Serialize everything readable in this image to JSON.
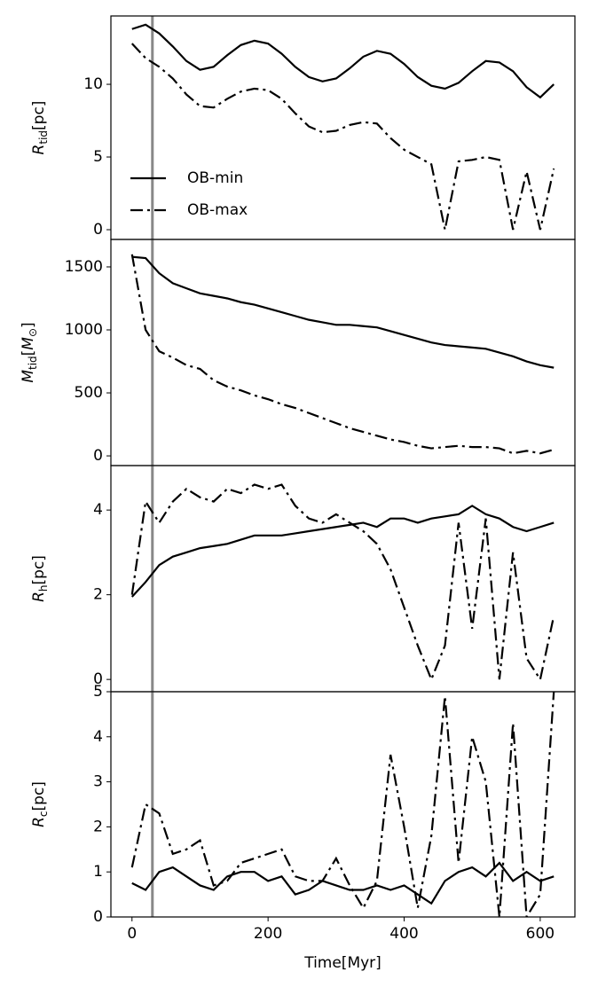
{
  "chart_data": [
    {
      "type": "line",
      "ylabel": [
        {
          "text": "R",
          "italic": true
        },
        {
          "text": "tid",
          "sub": true
        },
        {
          "text": "[pc]"
        }
      ],
      "x": [
        0,
        20,
        40,
        60,
        80,
        100,
        120,
        140,
        160,
        180,
        200,
        220,
        240,
        260,
        280,
        300,
        320,
        340,
        360,
        380,
        400,
        420,
        440,
        460,
        480,
        500,
        520,
        540,
        560,
        580,
        600,
        620
      ],
      "xlim": [
        -31,
        651
      ],
      "ylim": [
        -0.67,
        14.7
      ],
      "yticks": [
        0,
        5,
        10
      ],
      "vline": 30,
      "vline_color": "#888888",
      "legend": "lower left",
      "series": [
        {
          "name": "OB-min",
          "color": "#000000",
          "style": "solid",
          "values": [
            13.8,
            14.1,
            13.5,
            12.6,
            11.6,
            11.0,
            11.2,
            12.0,
            12.7,
            13.0,
            12.8,
            12.1,
            11.2,
            10.5,
            10.2,
            10.4,
            11.1,
            11.9,
            12.3,
            12.1,
            11.4,
            10.5,
            9.9,
            9.7,
            10.1,
            10.9,
            11.6,
            11.5,
            10.9,
            9.8,
            9.1,
            10.0
          ]
        },
        {
          "name": "OB-max",
          "color": "#000000",
          "style": "dashdot",
          "values": [
            12.8,
            11.8,
            11.2,
            10.4,
            9.3,
            8.5,
            8.4,
            9.0,
            9.5,
            9.7,
            9.6,
            9.0,
            8.0,
            7.1,
            6.7,
            6.8,
            7.2,
            7.4,
            7.3,
            6.3,
            5.5,
            5.0,
            4.5,
            0,
            4.7,
            4.8,
            5.0,
            4.8,
            0,
            4.0,
            0,
            4.2
          ]
        }
      ]
    },
    {
      "type": "line",
      "ylabel": [
        {
          "text": "M",
          "italic": true
        },
        {
          "text": "tid",
          "sub": true
        },
        {
          "text": "["
        },
        {
          "text": "M",
          "italic": true
        },
        {
          "text": "⊙",
          "sub": true
        },
        {
          "text": "]"
        }
      ],
      "x": [
        0,
        20,
        40,
        60,
        80,
        100,
        120,
        140,
        160,
        180,
        200,
        220,
        240,
        260,
        280,
        300,
        320,
        340,
        360,
        380,
        400,
        420,
        440,
        460,
        480,
        500,
        520,
        540,
        560,
        580,
        600,
        620
      ],
      "xlim": [
        -31,
        651
      ],
      "ylim": [
        -77,
        1718
      ],
      "yticks": [
        0,
        500,
        1000,
        1500
      ],
      "vline": 30,
      "vline_color": "#888888",
      "series": [
        {
          "color": "#000000",
          "style": "solid",
          "values": [
            1580,
            1570,
            1450,
            1370,
            1330,
            1290,
            1270,
            1250,
            1220,
            1200,
            1170,
            1140,
            1110,
            1080,
            1060,
            1040,
            1040,
            1030,
            1020,
            990,
            960,
            930,
            900,
            880,
            870,
            860,
            850,
            820,
            790,
            750,
            720,
            700
          ]
        },
        {
          "color": "#000000",
          "style": "dashdot",
          "values": [
            1600,
            1000,
            830,
            780,
            720,
            690,
            600,
            550,
            520,
            480,
            450,
            410,
            380,
            340,
            300,
            260,
            220,
            190,
            160,
            130,
            110,
            80,
            60,
            70,
            80,
            70,
            70,
            60,
            20,
            40,
            20,
            50
          ]
        }
      ]
    },
    {
      "type": "line",
      "ylabel": [
        {
          "text": "R",
          "italic": true
        },
        {
          "text": "h",
          "sub": true
        },
        {
          "text": "[pc]"
        }
      ],
      "x": [
        0,
        20,
        40,
        60,
        80,
        100,
        120,
        140,
        160,
        180,
        200,
        220,
        240,
        260,
        280,
        300,
        320,
        340,
        360,
        380,
        400,
        420,
        440,
        460,
        480,
        500,
        520,
        540,
        560,
        580,
        600,
        620
      ],
      "xlim": [
        -31,
        651
      ],
      "ylim": [
        -0.29,
        5.05
      ],
      "yticks": [
        0,
        2,
        4
      ],
      "vline": 30,
      "vline_color": "#888888",
      "series": [
        {
          "color": "#000000",
          "style": "solid",
          "values": [
            1.95,
            2.3,
            2.7,
            2.9,
            3.0,
            3.1,
            3.15,
            3.2,
            3.3,
            3.4,
            3.4,
            3.4,
            3.45,
            3.5,
            3.55,
            3.6,
            3.65,
            3.7,
            3.6,
            3.8,
            3.8,
            3.7,
            3.8,
            3.85,
            3.9,
            4.1,
            3.9,
            3.8,
            3.6,
            3.5,
            3.6,
            3.7
          ]
        },
        {
          "color": "#000000",
          "style": "dashdot",
          "values": [
            2.0,
            4.2,
            3.7,
            4.2,
            4.5,
            4.3,
            4.2,
            4.5,
            4.4,
            4.6,
            4.5,
            4.6,
            4.1,
            3.8,
            3.7,
            3.9,
            3.7,
            3.5,
            3.2,
            2.6,
            1.7,
            0.8,
            0,
            0.8,
            3.7,
            1.2,
            3.8,
            0,
            3.0,
            0.5,
            0,
            1.5
          ]
        }
      ]
    },
    {
      "type": "line",
      "ylabel": [
        {
          "text": "R",
          "italic": true
        },
        {
          "text": "c",
          "sub": true
        },
        {
          "text": "[pc]"
        }
      ],
      "xlabel": "Time[Myr]",
      "x": [
        0,
        20,
        40,
        60,
        80,
        100,
        120,
        140,
        160,
        180,
        200,
        220,
        240,
        260,
        280,
        300,
        320,
        340,
        360,
        380,
        400,
        420,
        440,
        460,
        480,
        500,
        520,
        540,
        560,
        580,
        600,
        620
      ],
      "xlim": [
        -31,
        651
      ],
      "xticks": [
        0,
        200,
        400,
        600
      ],
      "ylim": [
        0,
        5
      ],
      "yticks": [
        0,
        1,
        2,
        3,
        4,
        5
      ],
      "vline": 30,
      "vline_color": "#888888",
      "series": [
        {
          "color": "#000000",
          "style": "solid",
          "values": [
            0.75,
            0.6,
            1.0,
            1.1,
            0.9,
            0.7,
            0.6,
            0.9,
            1.0,
            1.0,
            0.8,
            0.9,
            0.5,
            0.6,
            0.8,
            0.7,
            0.6,
            0.6,
            0.7,
            0.6,
            0.7,
            0.5,
            0.3,
            0.8,
            1.0,
            1.1,
            0.9,
            1.2,
            0.8,
            1.0,
            0.8,
            0.9
          ]
        },
        {
          "color": "#000000",
          "style": "dashdot",
          "values": [
            1.1,
            2.5,
            2.3,
            1.4,
            1.5,
            1.7,
            0.7,
            0.8,
            1.2,
            1.3,
            1.4,
            1.5,
            0.9,
            0.8,
            0.8,
            1.3,
            0.7,
            0.2,
            0.8,
            3.6,
            2.0,
            0.2,
            1.8,
            4.9,
            1.2,
            4.0,
            3.0,
            0.0,
            4.3,
            0.0,
            0.5,
            5.0
          ]
        }
      ]
    }
  ]
}
